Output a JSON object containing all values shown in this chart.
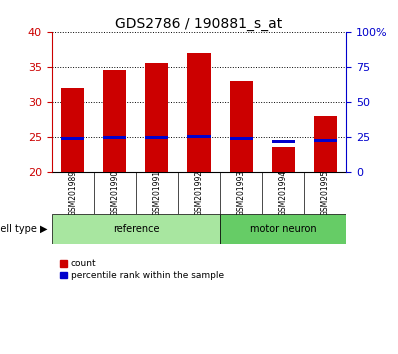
{
  "title": "GDS2786 / 190881_s_at",
  "samples": [
    "GSM201989",
    "GSM201990",
    "GSM201991",
    "GSM201992",
    "GSM201993",
    "GSM201994",
    "GSM201995"
  ],
  "count_values": [
    32.0,
    34.5,
    35.5,
    37.0,
    33.0,
    23.5,
    28.0
  ],
  "percentile_values": [
    24.0,
    24.5,
    24.5,
    25.0,
    24.0,
    21.5,
    22.5
  ],
  "blue_bar_height": 0.4,
  "ylim_left": [
    20,
    40
  ],
  "ylim_right": [
    0,
    100
  ],
  "yticks_left": [
    20,
    25,
    30,
    35,
    40
  ],
  "yticks_right": [
    0,
    25,
    50,
    75,
    100
  ],
  "ytick_labels_right": [
    "0",
    "25",
    "50",
    "75",
    "100%"
  ],
  "groups": [
    {
      "label": "reference",
      "start": 0,
      "end": 4,
      "color": "#a8e6a0"
    },
    {
      "label": "motor neuron",
      "start": 4,
      "end": 7,
      "color": "#66cc66"
    }
  ],
  "bar_color": "#cc0000",
  "blue_color": "#0000cc",
  "bar_width": 0.55,
  "background_color": "#ffffff",
  "plot_bg": "#ffffff",
  "tick_label_area_bg": "#c8c8c8",
  "left_axis_color": "#cc0000",
  "right_axis_color": "#0000cc",
  "legend_items": [
    {
      "label": "count",
      "color": "#cc0000"
    },
    {
      "label": "percentile rank within the sample",
      "color": "#0000cc"
    }
  ],
  "cell_type_label": "cell type"
}
